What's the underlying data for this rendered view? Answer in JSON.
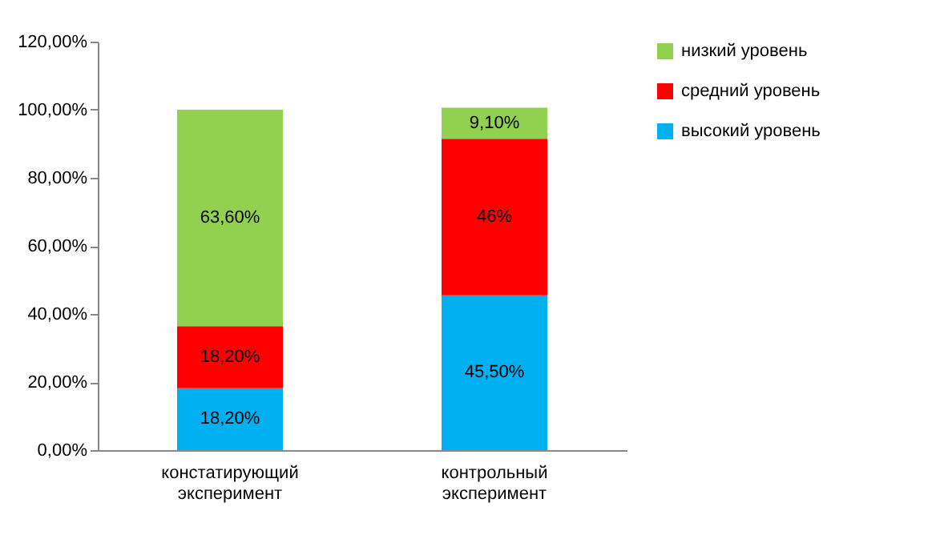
{
  "chart_data": {
    "type": "bar",
    "stacked": true,
    "categories": [
      "констатирующий эксперимент",
      "контрольный эксперимент"
    ],
    "series": [
      {
        "name": "высокий уровень",
        "color": "#00b0f0",
        "values": [
          18.2,
          45.5
        ],
        "value_labels": [
          "18,20%",
          "45,50%"
        ]
      },
      {
        "name": "средний уровень",
        "color": "#ff0000",
        "values": [
          18.2,
          46
        ],
        "value_labels": [
          "18,20%",
          "46%"
        ]
      },
      {
        "name": "низкий уровень",
        "color": "#92d050",
        "values": [
          63.6,
          9.1
        ],
        "value_labels": [
          "63,60%",
          "9,10%"
        ]
      }
    ],
    "ylim": [
      0,
      120
    ],
    "yticks": [
      {
        "value": 0,
        "label": "0,00%"
      },
      {
        "value": 20,
        "label": "20,00%"
      },
      {
        "value": 40,
        "label": "40,00%"
      },
      {
        "value": 60,
        "label": "60,00%"
      },
      {
        "value": 80,
        "label": "80,00%"
      },
      {
        "value": 100,
        "label": "100,00%"
      },
      {
        "value": 120,
        "label": "120,00%"
      }
    ],
    "legend": "right"
  }
}
